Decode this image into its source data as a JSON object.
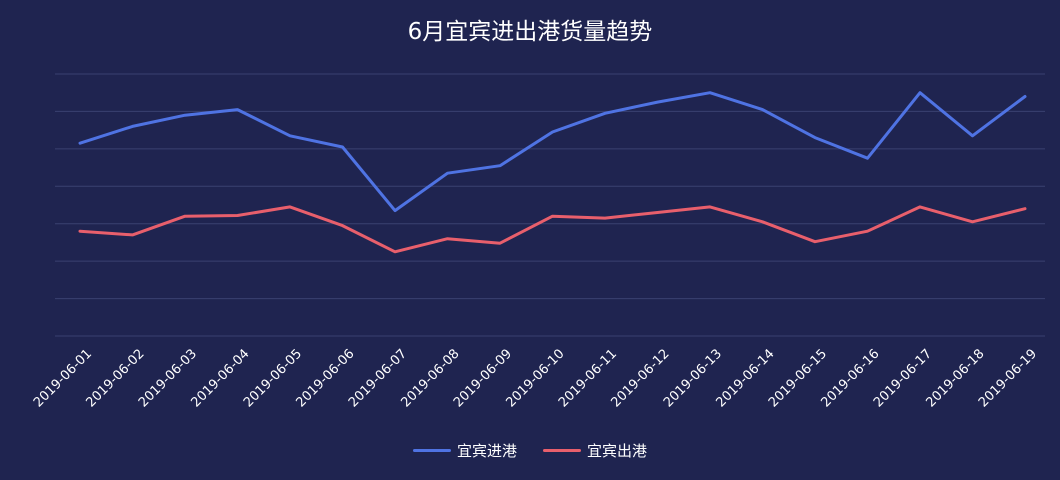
{
  "chart_data": {
    "type": "line",
    "title": "6月宜宾进出港货量趋势",
    "x": [
      "2019-06-01",
      "2019-06-02",
      "2019-06-03",
      "2019-06-04",
      "2019-06-05",
      "2019-06-06",
      "2019-06-07",
      "2019-06-08",
      "2019-06-09",
      "2019-06-10",
      "2019-06-11",
      "2019-06-12",
      "2019-06-13",
      "2019-06-14",
      "2019-06-15",
      "2019-06-16",
      "2019-06-17",
      "2019-06-18",
      "2019-06-19"
    ],
    "series": [
      {
        "name": "宜宾进港",
        "color": "#4f73e3",
        "values": [
          5.15,
          5.6,
          5.9,
          6.05,
          5.35,
          5.05,
          3.35,
          4.35,
          4.55,
          5.45,
          5.95,
          6.25,
          6.5,
          6.05,
          5.3,
          4.75,
          6.5,
          5.35,
          6.4
        ]
      },
      {
        "name": "宜宾出港",
        "color": "#e85f6c",
        "values": [
          2.8,
          2.7,
          3.2,
          3.22,
          3.45,
          2.95,
          2.25,
          2.6,
          2.48,
          3.2,
          3.15,
          3.3,
          3.45,
          3.05,
          2.52,
          2.8,
          3.45,
          3.05,
          3.4
        ]
      }
    ],
    "ylim": [
      0,
      7
    ],
    "grid": true,
    "legend": "bottom-center"
  }
}
